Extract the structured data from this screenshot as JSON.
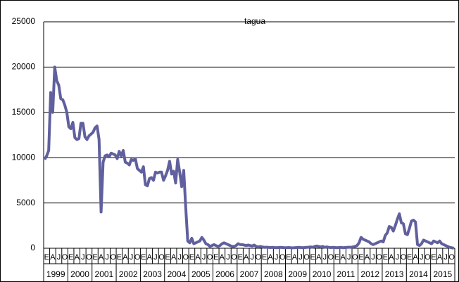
{
  "chart_data": {
    "type": "line",
    "title": "tagua",
    "categories": [
      "E",
      null,
      null,
      "A",
      null,
      null,
      "J",
      null,
      null,
      "O",
      null,
      null,
      "E",
      null,
      null,
      "A",
      null,
      null,
      "J",
      null,
      null,
      "O",
      null,
      null,
      "E",
      null,
      null,
      "A",
      null,
      null,
      "J",
      null,
      null,
      "O",
      null,
      null,
      "E",
      null,
      null,
      "A",
      null,
      null,
      "J",
      null,
      null,
      "O",
      null,
      null,
      "E",
      null,
      null,
      "A",
      null,
      null,
      "J",
      null,
      null,
      "O",
      null,
      null,
      "E",
      null,
      null,
      "A",
      null,
      null,
      "J",
      null,
      null,
      "O",
      null,
      null,
      "E",
      null,
      null,
      "A",
      null,
      null,
      "J",
      null,
      null,
      "O",
      null,
      null,
      "E",
      null,
      null,
      "A",
      null,
      null,
      "J",
      null,
      null,
      "O",
      null,
      null,
      "E",
      null,
      null,
      "A",
      null,
      null,
      "J",
      null,
      null,
      "O",
      null,
      null,
      "E",
      null,
      null,
      "A",
      null,
      null,
      "J",
      null,
      null,
      "O",
      null,
      null,
      "E",
      null,
      null,
      "A",
      null,
      null,
      "J",
      null,
      null,
      "O",
      null,
      null,
      "E",
      null,
      null,
      "A",
      null,
      null,
      "J",
      null,
      null,
      "O",
      null,
      null,
      "E",
      null,
      null,
      "A",
      null,
      null,
      "J",
      null,
      null,
      "O",
      null,
      null,
      "E",
      null,
      null,
      "A",
      null,
      null,
      "J",
      null,
      null,
      "O",
      null,
      null,
      "E",
      null,
      null,
      "A",
      null,
      null,
      "J",
      null,
      null,
      "O",
      null,
      null,
      "E",
      null,
      null,
      "A",
      null,
      null,
      "J",
      null,
      null,
      "O",
      null,
      null,
      "E",
      null,
      null,
      "A",
      null,
      null,
      "J",
      null,
      null,
      "O",
      null,
      null
    ],
    "year_labels": [
      "1999",
      "2000",
      "2001",
      "2002",
      "2003",
      "2004",
      "2005",
      "2006",
      "2007",
      "2008",
      "2009",
      "2010",
      "2011",
      "2012",
      "2013",
      "2014",
      "2015"
    ],
    "series": [
      {
        "color": "#60609e",
        "values": [
          9800,
          10200,
          10800,
          17200,
          15000,
          20000,
          18500,
          18000,
          16500,
          16400,
          15800,
          15000,
          13400,
          13200,
          13900,
          12200,
          12000,
          12100,
          13800,
          13800,
          12300,
          12000,
          12400,
          12600,
          12800,
          13300,
          13500,
          12000,
          4000,
          9500,
          10200,
          10300,
          10100,
          10500,
          10400,
          10300,
          9900,
          10700,
          10200,
          10800,
          9500,
          9400,
          9200,
          9800,
          9700,
          9900,
          8800,
          8600,
          8400,
          9000,
          7000,
          6900,
          7700,
          7800,
          7500,
          8400,
          8300,
          8400,
          8400,
          7500,
          8000,
          8600,
          9600,
          8200,
          8500,
          7200,
          9800,
          8400,
          6800,
          8600,
          4500,
          800,
          600,
          1100,
          500,
          600,
          700,
          800,
          1200,
          900,
          500,
          400,
          200,
          300,
          400,
          300,
          200,
          300,
          500,
          600,
          500,
          400,
          300,
          200,
          200,
          300,
          500,
          400,
          400,
          350,
          300,
          350,
          300,
          250,
          350,
          200,
          150,
          200,
          150,
          100,
          120,
          100,
          80,
          100,
          80,
          60,
          80,
          100,
          80,
          60,
          60,
          80,
          60,
          50,
          60,
          80,
          100,
          80,
          60,
          80,
          100,
          120,
          150,
          100,
          200,
          250,
          200,
          150,
          200,
          100,
          150,
          100,
          80,
          100,
          80,
          60,
          80,
          100,
          60,
          80,
          100,
          120,
          100,
          150,
          200,
          300,
          600,
          1200,
          1000,
          900,
          800,
          700,
          500,
          400,
          500,
          600,
          700,
          800,
          700,
          1400,
          1700,
          2400,
          2300,
          1900,
          2500,
          3200,
          3800,
          2800,
          2700,
          1600,
          1500,
          2200,
          3000,
          3100,
          2900,
          400,
          300,
          500,
          900,
          800,
          700,
          600,
          500,
          800,
          700,
          600,
          800,
          500,
          400,
          300,
          200,
          100,
          50,
          0
        ]
      }
    ],
    "ylim": [
      0,
      25000
    ],
    "yticks": [
      0,
      5000,
      10000,
      15000,
      20000,
      25000
    ],
    "grid": true
  }
}
